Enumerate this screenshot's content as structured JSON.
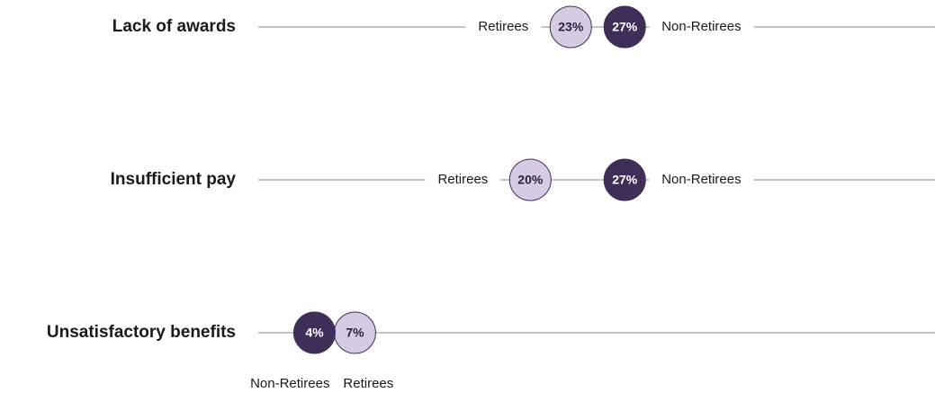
{
  "chart_data": {
    "type": "dot",
    "categories": [
      "Lack of awards",
      "Insufficient pay",
      "Unsatisfactory benefits"
    ],
    "series": [
      {
        "name": "Retirees",
        "color": "#d5cbe3",
        "values": [
          23,
          20,
          7
        ],
        "value_labels": [
          "23%",
          "20%",
          "7%"
        ]
      },
      {
        "name": "Non-Retirees",
        "color": "#3f2f58",
        "values": [
          27,
          27,
          4
        ],
        "value_labels": [
          "27%",
          "27%",
          "4%"
        ]
      }
    ],
    "xlim": [
      0,
      50
    ]
  }
}
